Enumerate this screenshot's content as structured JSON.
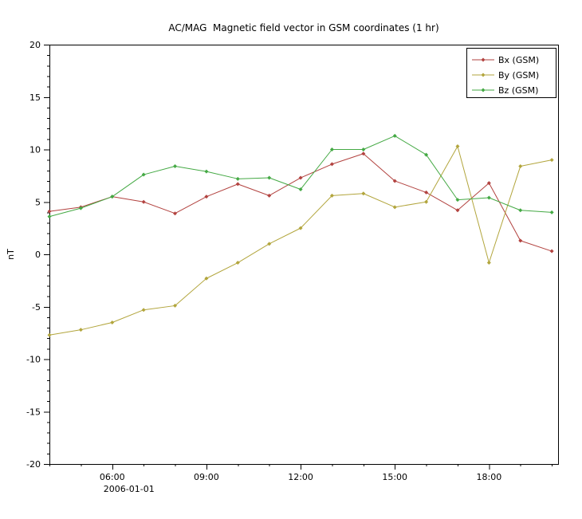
{
  "chart_data": {
    "type": "line",
    "title": "AC/MAG  Magnetic field vector in GSM coordinates (1 hr)",
    "ylabel": "nT",
    "ylim": [
      -20,
      20
    ],
    "ytick_step": 5,
    "ytick_minor_step": 1,
    "x_range": [
      4.0,
      20.2
    ],
    "x_minor_step": 1,
    "x_date_label": "2006-01-01",
    "xticks": [
      {
        "hour": 6,
        "label": "06:00"
      },
      {
        "hour": 9,
        "label": "09:00"
      },
      {
        "hour": 12,
        "label": "12:00"
      },
      {
        "hour": 15,
        "label": "15:00"
      },
      {
        "hour": 18,
        "label": "18:00"
      }
    ],
    "x_hours": [
      4,
      5,
      6,
      7,
      8,
      9,
      10,
      11,
      12,
      13,
      14,
      15,
      16,
      17,
      18,
      19,
      20
    ],
    "series": [
      {
        "name": "Bx (GSM)",
        "color": "#b2423f",
        "values": [
          4.1,
          4.5,
          5.5,
          5.0,
          3.9,
          5.5,
          6.7,
          5.6,
          7.3,
          8.6,
          9.6,
          7.0,
          5.9,
          4.2,
          6.8,
          1.3,
          0.3
        ]
      },
      {
        "name": "By (GSM)",
        "color": "#b2a53c",
        "values": [
          -7.7,
          -7.2,
          -6.5,
          -5.3,
          -4.9,
          -2.3,
          -0.8,
          1.0,
          2.5,
          5.6,
          5.8,
          4.5,
          5.0,
          10.3,
          -0.8,
          8.4,
          9.0
        ]
      },
      {
        "name": "Bz (GSM)",
        "color": "#44a944",
        "values": [
          3.6,
          4.4,
          5.5,
          7.6,
          8.4,
          7.9,
          7.2,
          7.3,
          6.2,
          10.0,
          10.0,
          11.3,
          9.5,
          5.2,
          5.4,
          4.2,
          4.0
        ]
      }
    ],
    "legend": {
      "position": "top-right",
      "entries": [
        "Bx (GSM)",
        "By (GSM)",
        "Bz (GSM)"
      ]
    },
    "grid": false,
    "axis_color": "#000000",
    "background": "#ffffff"
  }
}
